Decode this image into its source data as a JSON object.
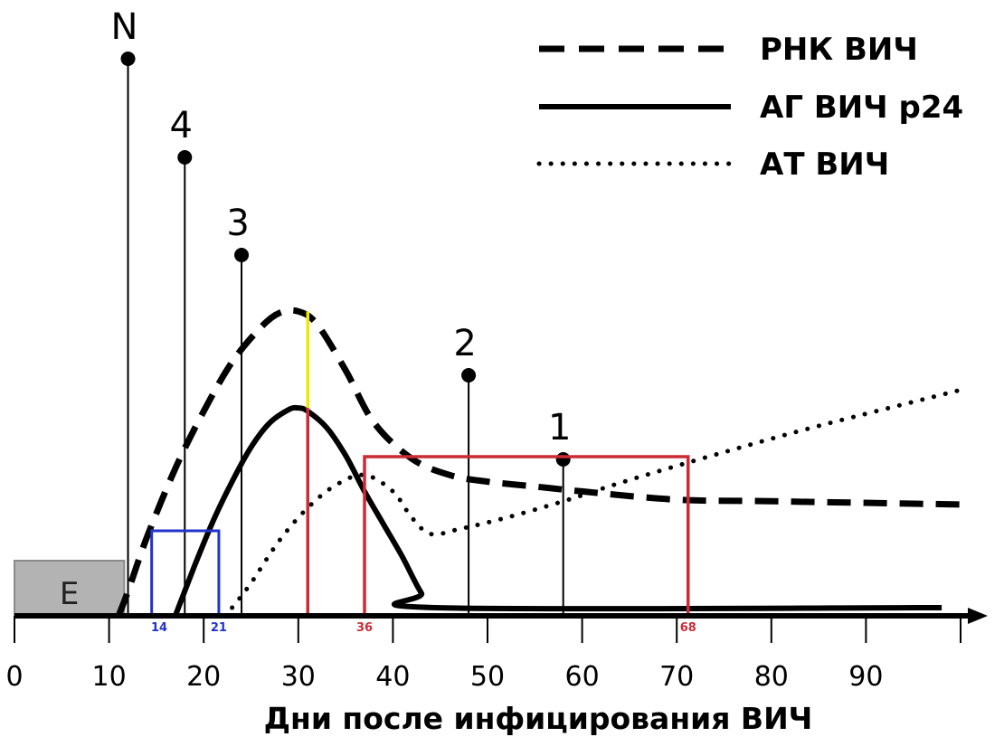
{
  "chart_data": {
    "type": "line",
    "xlabel": "Дни после инфицирования ВИЧ",
    "ylabel": "",
    "xlim": [
      0,
      100
    ],
    "x_ticks": [
      0,
      10,
      20,
      30,
      40,
      50,
      60,
      70,
      80,
      90
    ],
    "grid": false,
    "legend_position": "top-right",
    "series": [
      {
        "name": "РНК ВИЧ",
        "style": "dashed",
        "x": [
          11,
          12,
          14,
          17,
          20,
          23,
          26,
          28,
          30,
          32,
          35,
          38,
          42,
          46,
          50,
          55,
          60,
          70,
          80,
          100
        ],
        "y": [
          0,
          1.5,
          4.8,
          9.0,
          12.5,
          15.5,
          17.6,
          18.5,
          18.6,
          17.8,
          15.0,
          11.8,
          9.6,
          8.6,
          8.2,
          7.9,
          7.6,
          7.1,
          7.0,
          6.8
        ]
      },
      {
        "name": "АГ ВИЧ p24",
        "style": "solid",
        "x": [
          17,
          19,
          21,
          23,
          25,
          27,
          29,
          30,
          31,
          33,
          35,
          37,
          39,
          41,
          43,
          44.5,
          98
        ],
        "y": [
          0,
          3.0,
          5.8,
          8.2,
          10.3,
          11.8,
          12.6,
          12.7,
          12.5,
          11.5,
          9.8,
          7.6,
          5.6,
          3.6,
          1.4,
          0.5,
          0.5
        ]
      },
      {
        "name": "АТ ВИЧ",
        "style": "dotted",
        "x": [
          23,
          25,
          28,
          31,
          34,
          37,
          40,
          42,
          44,
          47,
          52,
          58,
          65,
          75,
          85,
          100
        ],
        "y": [
          0.5,
          2.0,
          4.6,
          6.6,
          8.0,
          8.6,
          7.6,
          6.0,
          5.0,
          5.3,
          6.0,
          7.0,
          8.3,
          10.0,
          11.6,
          13.8
        ]
      }
    ],
    "markers": [
      {
        "label": "N",
        "x": 12
      },
      {
        "label": "4",
        "x": 18
      },
      {
        "label": "3",
        "x": 24
      },
      {
        "label": "2",
        "x": 48
      },
      {
        "label": "1",
        "x": 58
      }
    ],
    "window_labels": {
      "blue_start": "14",
      "blue_end": "21",
      "red_start": "36",
      "red_end": "68"
    },
    "eclipse_label": "E",
    "colors": {
      "axis": "#000000",
      "eclipse_fill": "#b3b3b3",
      "blue_window": "#2233cc",
      "red_window": "#cc2b36",
      "peak_highlight": "#f2e600"
    }
  }
}
